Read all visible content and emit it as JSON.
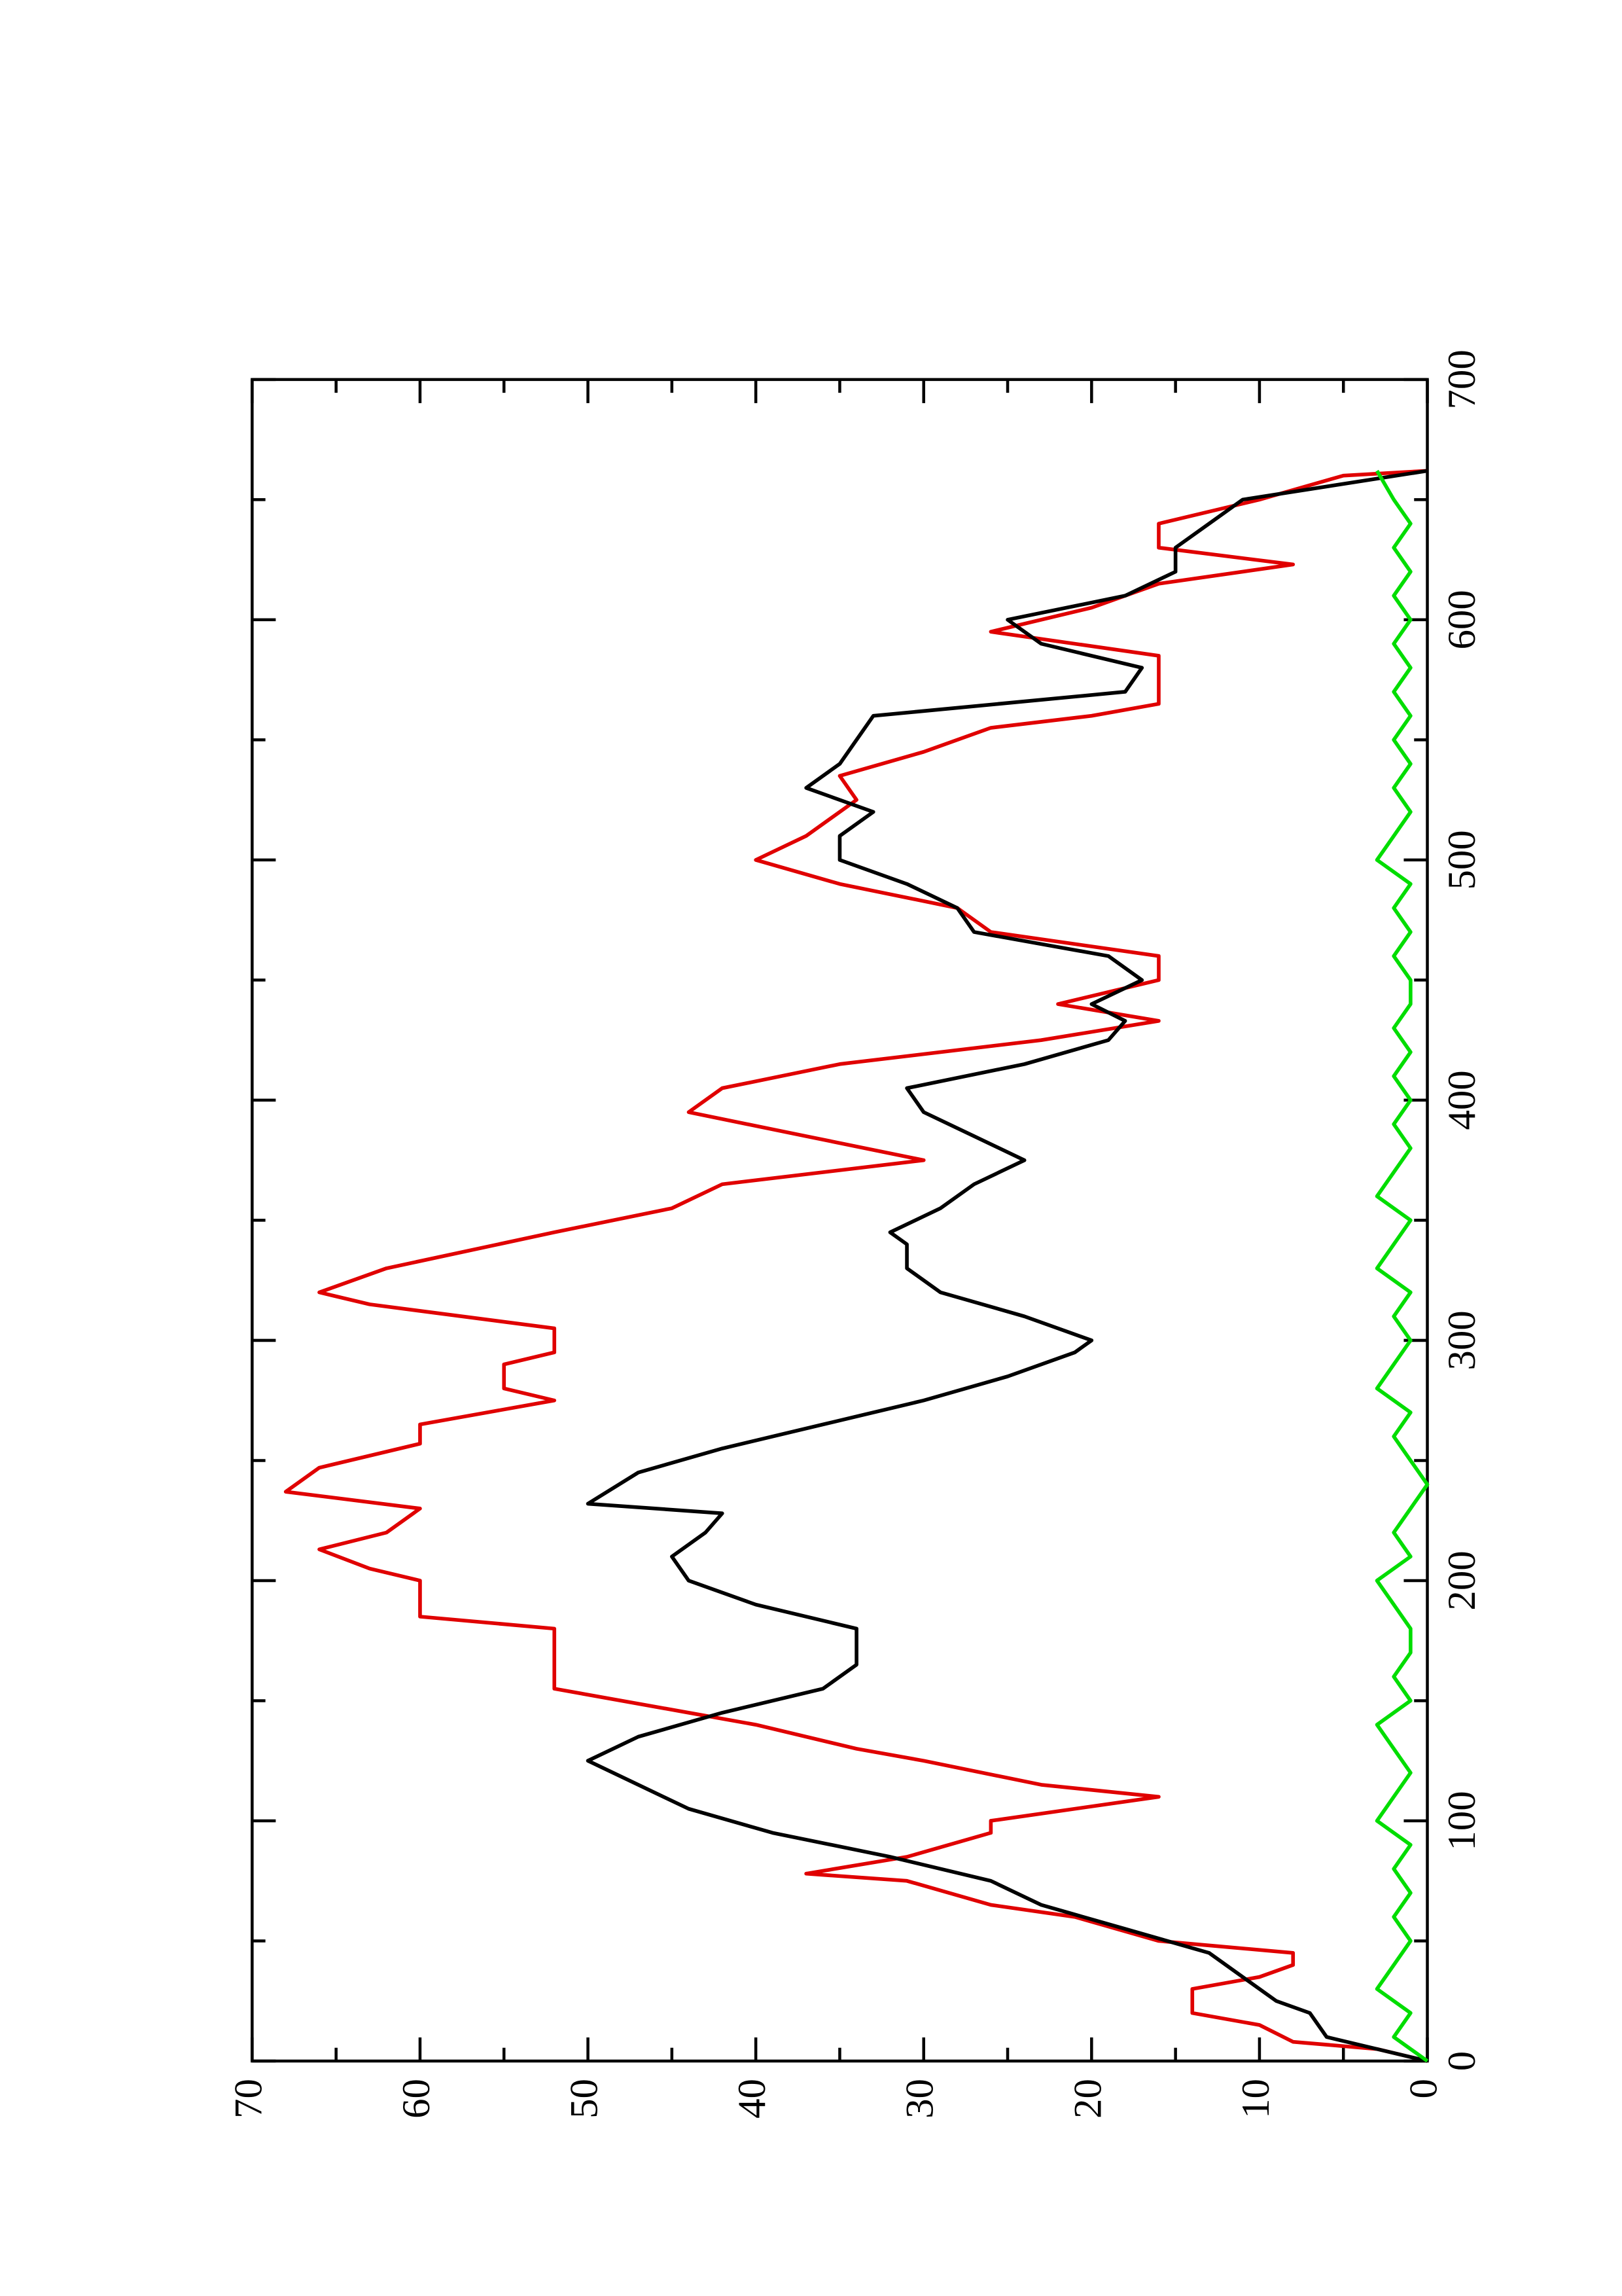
{
  "chart_data": {
    "type": "line",
    "xlim": [
      0,
      700
    ],
    "xticks": [
      0,
      100,
      200,
      300,
      400,
      500,
      600,
      700
    ],
    "xminorticks": [
      50,
      150,
      250,
      350,
      450,
      550,
      650
    ],
    "ylim": [
      0,
      70
    ],
    "yticks": [
      0,
      10,
      20,
      30,
      40,
      50,
      60,
      70
    ],
    "yminorticks": [
      5,
      15,
      25,
      35,
      45,
      55,
      65
    ],
    "series": [
      {
        "color": "#e00000",
        "x": [
          0,
          5,
          8,
          15,
          20,
          30,
          35,
          40,
          45,
          50,
          60,
          65,
          75,
          78,
          85,
          95,
          100,
          110,
          115,
          125,
          130,
          140,
          145,
          155,
          180,
          185,
          200,
          205,
          213,
          220,
          230,
          237,
          247,
          257,
          265,
          275,
          280,
          290,
          295,
          305,
          315,
          320,
          330,
          345,
          355,
          365,
          375,
          385,
          395,
          405,
          415,
          425,
          433,
          440,
          450,
          460,
          470,
          480,
          490,
          500,
          510,
          525,
          535,
          545,
          555,
          560,
          565,
          585,
          595,
          605,
          615,
          623,
          630,
          640,
          650,
          660,
          662
        ],
        "values": [
          0,
          3,
          8,
          10,
          14,
          14,
          10,
          8,
          8,
          16,
          21,
          26,
          31,
          37,
          31,
          26,
          26,
          16,
          23,
          30,
          34,
          40,
          44,
          52,
          52,
          60,
          60,
          63,
          66,
          62,
          60,
          68,
          66,
          60,
          60,
          52,
          55,
          55,
          52,
          52,
          63,
          66,
          62,
          52,
          45,
          42,
          30,
          37,
          44,
          42,
          35,
          23,
          16,
          22,
          16,
          16,
          26,
          28,
          35,
          40,
          37,
          34,
          35,
          30,
          26,
          20,
          16,
          16,
          26,
          20,
          16,
          8,
          16,
          16,
          10,
          5,
          0
        ]
      },
      {
        "color": "#000000",
        "x": [
          0,
          10,
          20,
          25,
          35,
          45,
          55,
          65,
          75,
          85,
          95,
          105,
          115,
          125,
          135,
          145,
          155,
          165,
          180,
          190,
          200,
          210,
          220,
          228,
          232,
          245,
          255,
          265,
          275,
          285,
          295,
          300,
          310,
          320,
          330,
          340,
          345,
          355,
          365,
          375,
          385,
          395,
          405,
          415,
          425,
          433,
          440,
          450,
          460,
          470,
          480,
          490,
          500,
          510,
          520,
          530,
          540,
          550,
          560,
          570,
          580,
          590,
          600,
          610,
          620,
          630,
          640,
          650,
          662
        ],
        "values": [
          0,
          6,
          7,
          9,
          11,
          13,
          18,
          23,
          26,
          32,
          39,
          44,
          47,
          50,
          47,
          42,
          36,
          34,
          34,
          40,
          44,
          45,
          43,
          42,
          50,
          47,
          42,
          36,
          30,
          25,
          21,
          20,
          24,
          29,
          31,
          31,
          32,
          29,
          27,
          24,
          27,
          30,
          31,
          24,
          19,
          18,
          20,
          17,
          19,
          27,
          28,
          31,
          35,
          35,
          33,
          37,
          35,
          34,
          33,
          18,
          17,
          23,
          25,
          18,
          15,
          15,
          13,
          11,
          0
        ]
      },
      {
        "color": "#00dd00",
        "x": [
          0,
          10,
          20,
          30,
          40,
          50,
          60,
          70,
          80,
          90,
          100,
          110,
          120,
          130,
          140,
          150,
          160,
          170,
          180,
          190,
          200,
          210,
          220,
          230,
          240,
          250,
          260,
          270,
          280,
          290,
          300,
          310,
          320,
          330,
          340,
          350,
          360,
          370,
          380,
          390,
          400,
          410,
          420,
          430,
          440,
          450,
          460,
          470,
          480,
          490,
          500,
          510,
          520,
          530,
          540,
          550,
          560,
          570,
          580,
          590,
          600,
          610,
          620,
          630,
          640,
          650,
          662
        ],
        "values": [
          0,
          2,
          1,
          3,
          2,
          1,
          2,
          1,
          2,
          1,
          3,
          2,
          1,
          2,
          3,
          1,
          2,
          1,
          1,
          2,
          3,
          1,
          2,
          1,
          0,
          1,
          2,
          1,
          3,
          2,
          1,
          2,
          1,
          3,
          2,
          1,
          3,
          2,
          1,
          2,
          1,
          2,
          1,
          2,
          1,
          1,
          2,
          1,
          2,
          1,
          3,
          2,
          1,
          2,
          1,
          2,
          1,
          2,
          1,
          2,
          1,
          2,
          1,
          2,
          1,
          2,
          3
        ]
      }
    ]
  }
}
